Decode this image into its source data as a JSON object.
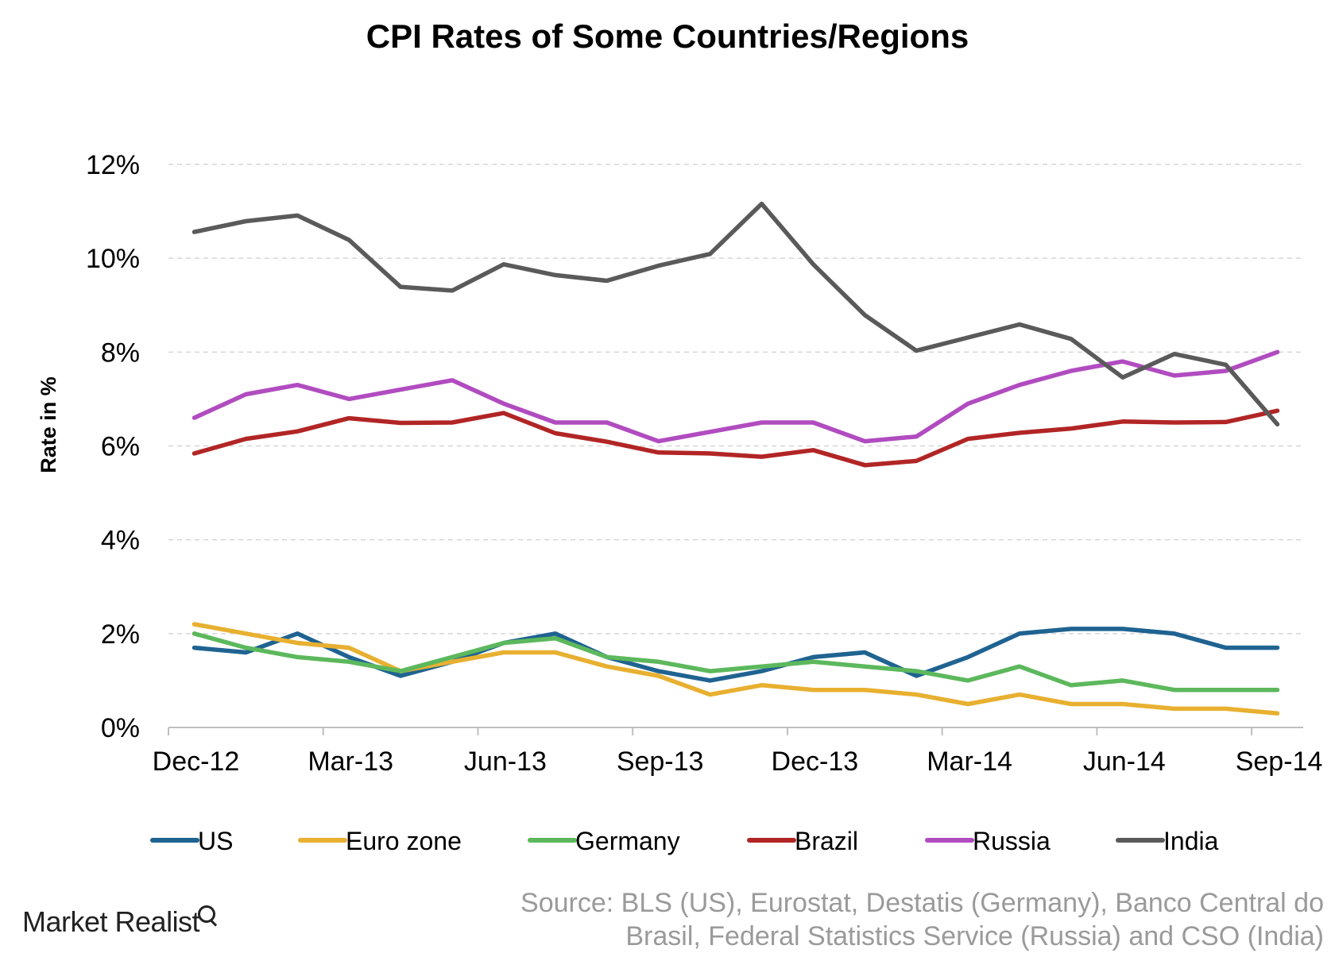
{
  "chart_data": {
    "type": "line",
    "title": "CPI Rates of Some Countries/Regions",
    "ylabel": "Rate in %",
    "xlabel": "",
    "ylim": [
      0,
      12
    ],
    "ytick_labels": [
      "0%",
      "2%",
      "4%",
      "6%",
      "8%",
      "10%",
      "12%"
    ],
    "yticks": [
      0,
      2,
      4,
      6,
      8,
      10,
      12
    ],
    "x": [
      "Dec-12",
      "Jan-13",
      "Feb-13",
      "Mar-13",
      "Apr-13",
      "May-13",
      "Jun-13",
      "Jul-13",
      "Aug-13",
      "Sep-13",
      "Oct-13",
      "Nov-13",
      "Dec-13",
      "Jan-14",
      "Feb-14",
      "Mar-14",
      "Apr-14",
      "May-14",
      "Jun-14",
      "Jul-14",
      "Aug-14",
      "Sep-14"
    ],
    "xtick_labels": [
      "Dec-12",
      "Mar-13",
      "Jun-13",
      "Sep-13",
      "Dec-13",
      "Mar-14",
      "Jun-14",
      "Sep-14"
    ],
    "grid": true,
    "legend_position": "bottom",
    "series": [
      {
        "name": "US",
        "color": "#1f6391",
        "values": [
          1.7,
          1.6,
          2.0,
          1.5,
          1.1,
          1.4,
          1.8,
          2.0,
          1.5,
          1.2,
          1.0,
          1.2,
          1.5,
          1.6,
          1.1,
          1.5,
          2.0,
          2.1,
          2.1,
          2.0,
          1.7,
          1.7
        ]
      },
      {
        "name": "Euro zone",
        "color": "#e8b030",
        "values": [
          2.2,
          2.0,
          1.8,
          1.7,
          1.2,
          1.4,
          1.6,
          1.6,
          1.3,
          1.1,
          0.7,
          0.9,
          0.8,
          0.8,
          0.7,
          0.5,
          0.7,
          0.5,
          0.5,
          0.4,
          0.4,
          0.3
        ]
      },
      {
        "name": "Germany",
        "color": "#5cb85c",
        "values": [
          2.0,
          1.7,
          1.5,
          1.4,
          1.2,
          1.5,
          1.8,
          1.9,
          1.5,
          1.4,
          1.2,
          1.3,
          1.4,
          1.3,
          1.2,
          1.0,
          1.3,
          0.9,
          1.0,
          0.8,
          0.8,
          0.8
        ]
      },
      {
        "name": "Brazil",
        "color": "#b22525",
        "values": [
          5.84,
          6.15,
          6.31,
          6.59,
          6.49,
          6.5,
          6.7,
          6.27,
          6.09,
          5.86,
          5.84,
          5.77,
          5.91,
          5.59,
          5.68,
          6.15,
          6.28,
          6.37,
          6.52,
          6.5,
          6.51,
          6.75
        ]
      },
      {
        "name": "Russia",
        "color": "#b14cc0",
        "values": [
          6.6,
          7.1,
          7.3,
          7.0,
          7.2,
          7.4,
          6.9,
          6.5,
          6.5,
          6.1,
          6.3,
          6.5,
          6.5,
          6.1,
          6.2,
          6.9,
          7.3,
          7.6,
          7.8,
          7.5,
          7.6,
          8.0
        ]
      },
      {
        "name": "India",
        "color": "#5a5a5a",
        "values": [
          10.56,
          10.79,
          10.91,
          10.39,
          9.39,
          9.31,
          9.87,
          9.64,
          9.52,
          9.84,
          10.09,
          11.16,
          9.87,
          8.79,
          8.03,
          8.31,
          8.59,
          8.28,
          7.46,
          7.96,
          7.73,
          6.46
        ]
      }
    ]
  },
  "source": {
    "line1": "Source: BLS (US), Eurostat, Destatis (Germany), Banco Central do",
    "line2": "Brasil, Federal Statistics Service (Russia) and CSO (India)"
  },
  "brand": {
    "name": "Market Realist",
    "icon": "magnifier-chart-icon"
  }
}
